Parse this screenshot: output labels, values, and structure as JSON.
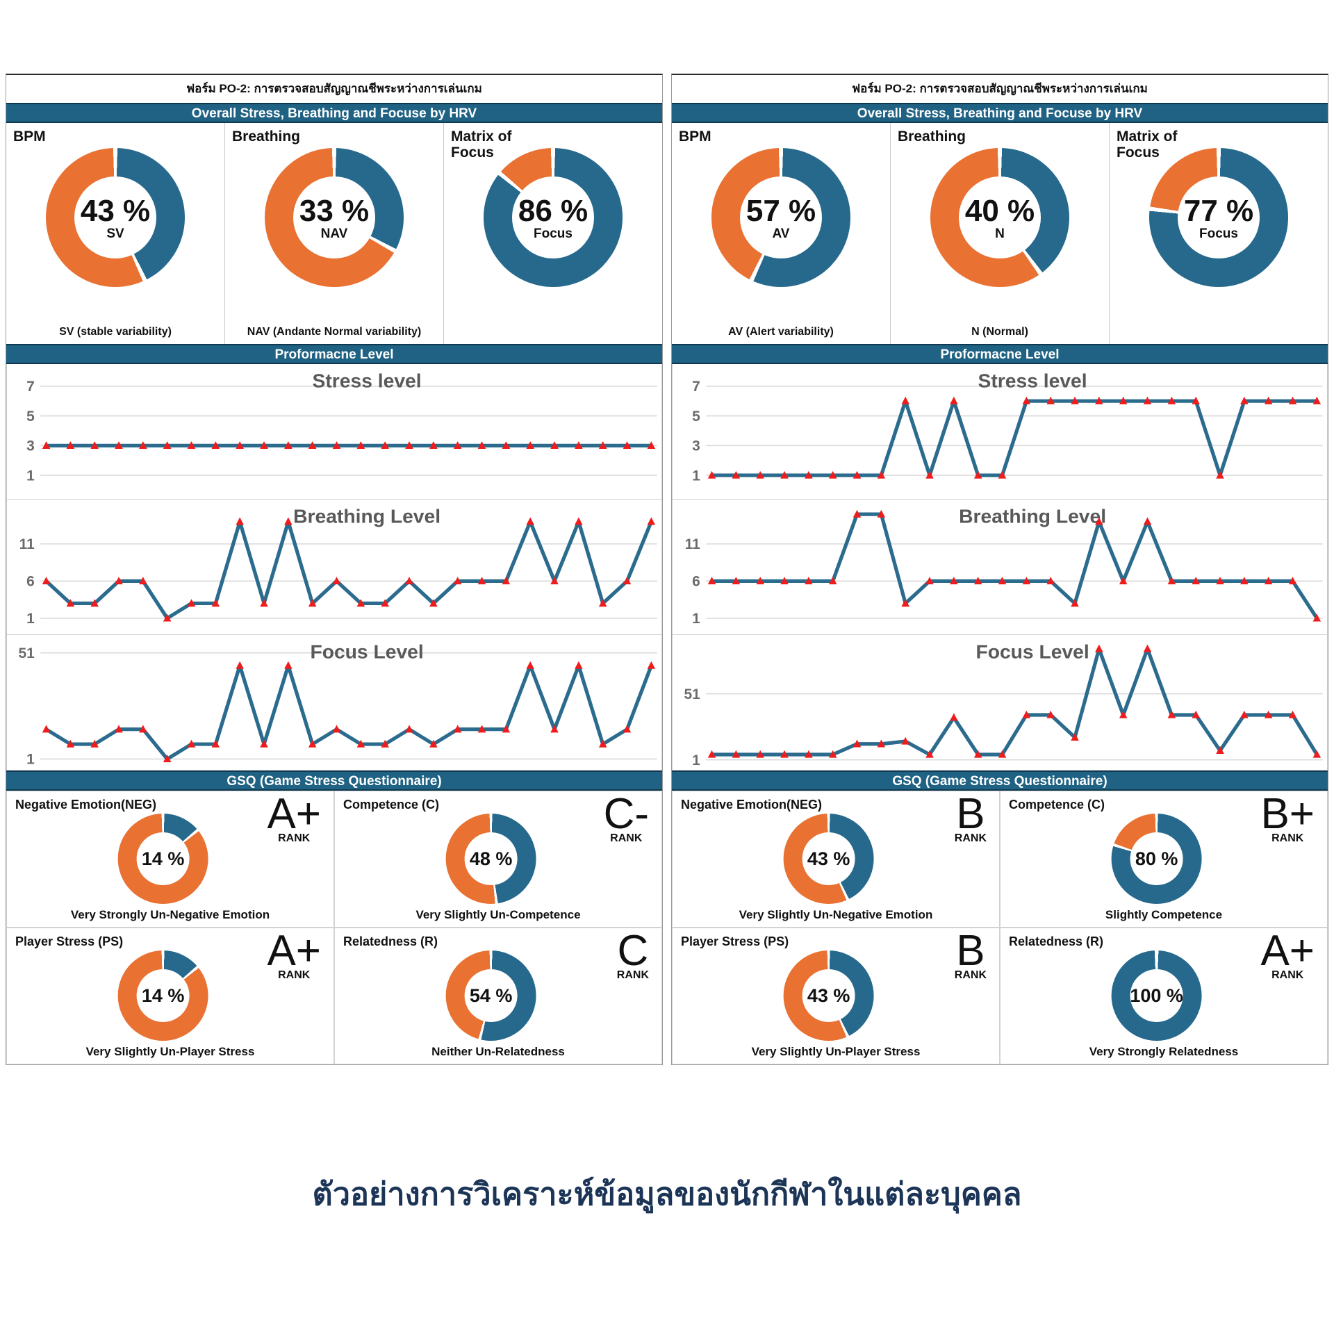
{
  "colors": {
    "bar_blue": "#1F6283",
    "donut_blue": "#26698C",
    "donut_orange": "#E97132",
    "line_blue": "#2B6B8D",
    "marker_red": "#EE1C1C",
    "grid_gray": "#D9D9D9",
    "chart_text": "#595959",
    "footer_text": "#1C3557"
  },
  "panels": [
    {
      "form_title": "ฟอร์ม PO-2: การตรวจสอบสัญญาณชีพระหว่างการเล่นเกม",
      "hrv_header": "Overall Stress, Breathing and Focuse by HRV",
      "performance_header": "Proformacne Level",
      "gsq_header": "GSQ (Game Stress Questionnaire)"
    },
    {
      "form_title": "ฟอร์ม PO-2: การตรวจสอบสัญญาณชีพระหว่างการเล่นเกม",
      "hrv_header": "Overall Stress, Breathing and Focuse by HRV",
      "performance_header": "Proformacne Level",
      "gsq_header": "GSQ (Game Stress Questionnaire)"
    }
  ],
  "chart_data": {
    "hrv_donuts": [
      {
        "panel": 0,
        "type": "pie",
        "title": "BPM",
        "value": 43,
        "label": "43 %",
        "code": "SV",
        "caption": "SV (stable variability)"
      },
      {
        "panel": 0,
        "type": "pie",
        "title": "Breathing",
        "value": 33,
        "label": "33 %",
        "code": "NAV",
        "caption": "NAV (Andante Normal variability)"
      },
      {
        "panel": 0,
        "type": "pie",
        "title": "Matrix of Focus",
        "value": 86,
        "label": "86 %",
        "code": "Focus",
        "caption": ""
      },
      {
        "panel": 1,
        "type": "pie",
        "title": "BPM",
        "value": 57,
        "label": "57 %",
        "code": "AV",
        "caption": "AV (Alert variability)"
      },
      {
        "panel": 1,
        "type": "pie",
        "title": "Breathing",
        "value": 40,
        "label": "40 %",
        "code": "N",
        "caption": "N (Normal)"
      },
      {
        "panel": 1,
        "type": "pie",
        "title": "Matrix of Focus",
        "value": 77,
        "label": "77 %",
        "code": "Focus",
        "caption": ""
      }
    ],
    "line_charts": [
      {
        "panel": 0,
        "type": "line",
        "title": "Stress level",
        "yticks": [
          7,
          5,
          3,
          1
        ],
        "ylim": [
          0,
          8
        ],
        "values": [
          3,
          3,
          3,
          3,
          3,
          3,
          3,
          3,
          3,
          3,
          3,
          3,
          3,
          3,
          3,
          3,
          3,
          3,
          3,
          3,
          3,
          3,
          3,
          3,
          3,
          3
        ]
      },
      {
        "panel": 0,
        "type": "line",
        "title": "Breathing Level",
        "yticks": [
          11,
          6,
          1
        ],
        "ylim": [
          0,
          16
        ],
        "values": [
          6,
          3,
          3,
          6,
          6,
          1,
          3,
          3,
          14,
          3,
          14,
          3,
          6,
          3,
          3,
          6,
          3,
          6,
          6,
          6,
          14,
          6,
          14,
          3,
          6,
          14
        ]
      },
      {
        "panel": 0,
        "type": "line",
        "title": "Focus Level",
        "yticks": [
          51,
          1
        ],
        "ylim": [
          0,
          56
        ],
        "values": [
          15,
          8,
          8,
          15,
          15,
          1,
          8,
          8,
          45,
          8,
          45,
          8,
          15,
          8,
          8,
          15,
          8,
          15,
          15,
          15,
          45,
          15,
          45,
          8,
          15,
          45
        ]
      },
      {
        "panel": 1,
        "type": "line",
        "title": "Stress level",
        "yticks": [
          7,
          5,
          3,
          1
        ],
        "ylim": [
          0,
          8
        ],
        "values": [
          1,
          1,
          1,
          1,
          1,
          1,
          1,
          1,
          6,
          1,
          6,
          1,
          1,
          6,
          6,
          6,
          6,
          6,
          6,
          6,
          6,
          1,
          6,
          6,
          6,
          6
        ]
      },
      {
        "panel": 1,
        "type": "line",
        "title": "Breathing Level",
        "yticks": [
          11,
          6,
          1
        ],
        "ylim": [
          0,
          16
        ],
        "values": [
          6,
          6,
          6,
          6,
          6,
          6,
          15,
          15,
          3,
          6,
          6,
          6,
          6,
          6,
          6,
          3,
          14,
          6,
          14,
          6,
          6,
          6,
          6,
          6,
          6,
          1
        ]
      },
      {
        "panel": 1,
        "type": "line",
        "title": "Focus Level",
        "yticks": [
          51,
          1
        ],
        "ylim": [
          0,
          90
        ],
        "values": [
          5,
          5,
          5,
          5,
          5,
          5,
          13,
          13,
          15,
          5,
          33,
          5,
          5,
          35,
          35,
          18,
          85,
          35,
          85,
          35,
          35,
          8,
          35,
          35,
          35,
          5
        ]
      }
    ],
    "gsq_donuts": [
      {
        "panel": 0,
        "type": "pie",
        "title": "Negative Emotion(NEG)",
        "value": 14,
        "label": "14 %",
        "rank": "A+",
        "rank_word": "RANK",
        "caption": "Very Strongly Un-Negative Emotion"
      },
      {
        "panel": 0,
        "type": "pie",
        "title": "Competence (C)",
        "value": 48,
        "label": "48 %",
        "rank": "C-",
        "rank_word": "RANK",
        "caption": "Very Slightly Un-Competence"
      },
      {
        "panel": 0,
        "type": "pie",
        "title": "Player Stress (PS)",
        "value": 14,
        "label": "14 %",
        "rank": "A+",
        "rank_word": "RANK",
        "caption": "Very Slightly Un-Player Stress"
      },
      {
        "panel": 0,
        "type": "pie",
        "title": "Relatedness (R)",
        "value": 54,
        "label": "54 %",
        "rank": "C",
        "rank_word": "RANK",
        "caption": "Neither Un-Relatedness"
      },
      {
        "panel": 1,
        "type": "pie",
        "title": "Negative Emotion(NEG)",
        "value": 43,
        "label": "43 %",
        "rank": "B",
        "rank_word": "RANK",
        "caption": "Very Slightly Un-Negative Emotion"
      },
      {
        "panel": 1,
        "type": "pie",
        "title": "Competence (C)",
        "value": 80,
        "label": "80 %",
        "rank": "B+",
        "rank_word": "RANK",
        "caption": "Slightly Competence"
      },
      {
        "panel": 1,
        "type": "pie",
        "title": "Player Stress (PS)",
        "value": 43,
        "label": "43 %",
        "rank": "B",
        "rank_word": "RANK",
        "caption": "Very Slightly Un-Player Stress"
      },
      {
        "panel": 1,
        "type": "pie",
        "title": "Relatedness (R)",
        "value": 100,
        "label": "100 %",
        "rank": "A+",
        "rank_word": "RANK",
        "caption": "Very Strongly Relatedness"
      }
    ]
  },
  "footer_caption": "ตัวอย่างการวิเคราะห์ข้อมูลของนักกีฬาในแต่ละบุคคล"
}
